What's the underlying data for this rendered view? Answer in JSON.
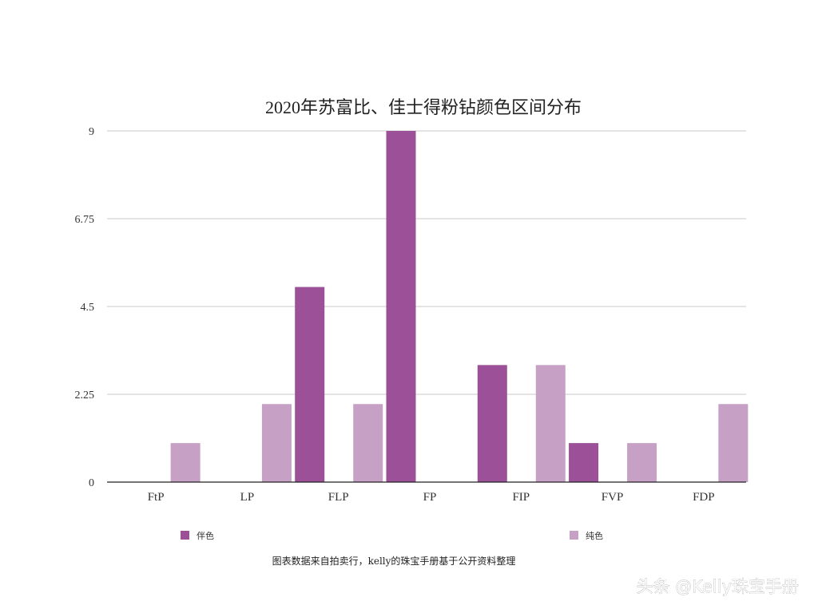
{
  "chart_data": {
    "type": "bar",
    "title": "2020年苏富比、佳士得粉钻颜色区间分布",
    "xlabel": "",
    "ylabel": "",
    "categories": [
      "FtP",
      "LP",
      "FLP",
      "FP",
      "FIP",
      "FVP",
      "FDP"
    ],
    "series": [
      {
        "name": "伴色",
        "color": "#9b5097",
        "values": [
          0,
          0,
          5,
          9,
          3,
          1,
          0
        ]
      },
      {
        "name": "纯色",
        "color": "#c7a1c5",
        "values": [
          1,
          2,
          2,
          0,
          3,
          1,
          2
        ]
      }
    ],
    "ylim": [
      0,
      9
    ],
    "yticks": [
      "0",
      "2.25",
      "4.5",
      "6.75",
      "9"
    ],
    "grid": true,
    "legend": "bottom"
  },
  "source_note": "图表数据来自拍卖行，kelly的珠宝手册基于公开资料整理",
  "watermark": "头条 @Kelly珠宝手册"
}
